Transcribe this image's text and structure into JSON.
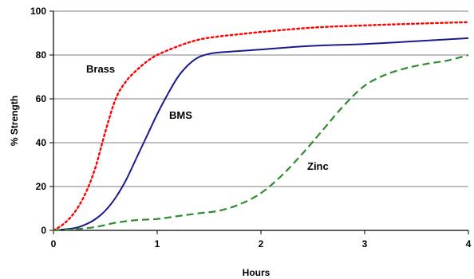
{
  "chart_data": {
    "type": "line",
    "title": "",
    "xlabel": "Hours",
    "ylabel": "% Strength",
    "xlim": [
      0,
      4
    ],
    "ylim": [
      0,
      100
    ],
    "x_ticks": [
      "0",
      "1",
      "2",
      "3",
      "4"
    ],
    "y_ticks": [
      "0",
      "20",
      "40",
      "60",
      "80",
      "100"
    ],
    "grid": "horizontal",
    "legend": "none",
    "series": [
      {
        "name": "Brass",
        "color": "#ff0000",
        "style": "dotted",
        "x": [
          0,
          0.1,
          0.2,
          0.3,
          0.4,
          0.5,
          0.6,
          0.7,
          0.8,
          0.9,
          1.0,
          1.2,
          1.4,
          1.6,
          1.8,
          2.0,
          2.5,
          3.0,
          3.5,
          4.0
        ],
        "y": [
          0,
          3,
          8,
          16,
          28,
          45,
          60,
          68,
          73,
          77,
          80,
          84,
          87,
          88.5,
          89.5,
          90.5,
          92.5,
          93.5,
          94.3,
          95
        ]
      },
      {
        "name": "BMS",
        "color": "#1a1a8c",
        "style": "solid",
        "x": [
          0,
          0.2,
          0.3,
          0.4,
          0.5,
          0.6,
          0.7,
          0.8,
          0.9,
          1.0,
          1.1,
          1.2,
          1.3,
          1.4,
          1.5,
          1.6,
          2.0,
          2.5,
          3.0,
          3.5,
          4.0
        ],
        "y": [
          0,
          1,
          2.5,
          5,
          9,
          15,
          23,
          33,
          43,
          53,
          62,
          70,
          75.5,
          79,
          80.5,
          81.2,
          82.5,
          84.2,
          85,
          86.3,
          87.7
        ]
      },
      {
        "name": "Zinc",
        "color": "#2e8b2e",
        "style": "dashed",
        "x": [
          0,
          0.2,
          0.4,
          0.6,
          0.8,
          1.0,
          1.2,
          1.4,
          1.6,
          1.8,
          2.0,
          2.2,
          2.4,
          2.6,
          2.8,
          3.0,
          3.2,
          3.4,
          3.6,
          3.8,
          4.0
        ],
        "y": [
          0,
          0.5,
          1.5,
          3.5,
          4.7,
          5.2,
          6.5,
          7.8,
          9,
          12,
          17,
          25,
          35,
          46,
          57,
          66,
          71,
          74,
          76,
          77.5,
          80
        ]
      }
    ]
  }
}
